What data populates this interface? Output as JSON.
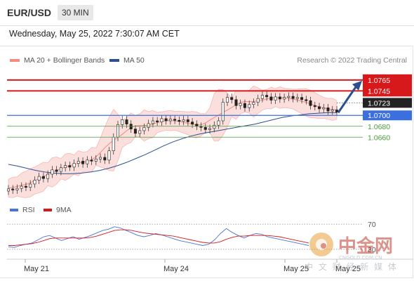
{
  "header": {
    "pair": "EUR/USD",
    "timeframe": "30 MIN"
  },
  "datetime": "Wednesday, May 25, 2022 7:30:07 AM CET",
  "legend": {
    "bb_label": "MA 20 + Bollinger Bands",
    "ma50_label": "MA 50",
    "credit": "Research © 2022 Trading Central"
  },
  "rsi_legend": {
    "rsi_label": "RSI",
    "ma_label": "9MA"
  },
  "colors": {
    "bb": "#f28b82",
    "ma50": "#2c4f8f",
    "resistance": "#d7191c",
    "pivot": "#3b6fe0",
    "support": "#4a9a3c",
    "rsi": "#4a74d9",
    "rsi_ma": "#d7191c"
  },
  "watermark": {
    "logo_text": "中金网",
    "url_text": "CNGOLD.COM.CN",
    "tagline": "中 文 财 经 新 媒 体"
  },
  "chart_data": [
    {
      "type": "candlestick",
      "title": "EUR/USD 30 MIN",
      "ylim": [
        1.0543,
        1.0788
      ],
      "x_axis_ticks": [
        "May 21",
        "May 24",
        "May 25",
        "May 25"
      ],
      "levels": [
        {
          "value": 1.0765,
          "label": "1.0765",
          "kind": "resistance"
        },
        {
          "value": 1.0745,
          "label": "1.0745",
          "kind": "resistance"
        },
        {
          "value": 1.0723,
          "label": "1.0723",
          "kind": "last-price"
        },
        {
          "value": 1.07,
          "label": "1.0700",
          "kind": "pivot"
        },
        {
          "value": 1.068,
          "label": "1.0680",
          "kind": "support"
        },
        {
          "value": 1.066,
          "label": "1.0660",
          "kind": "support"
        }
      ],
      "close_series": [
        1.0565,
        1.0563,
        1.0566,
        1.057,
        1.0568,
        1.0574,
        1.0581,
        1.0588,
        1.0584,
        1.0592,
        1.06,
        1.0597,
        1.0604,
        1.0608,
        1.0605,
        1.0612,
        1.0616,
        1.0611,
        1.0618,
        1.0616,
        1.062,
        1.0623,
        1.0618,
        1.0635,
        1.066,
        1.0683,
        1.0692,
        1.0684,
        1.0675,
        1.0667,
        1.0672,
        1.0678,
        1.0685,
        1.069,
        1.0688,
        1.0694,
        1.069,
        1.0693,
        1.0691,
        1.0689,
        1.0692,
        1.0688,
        1.0684,
        1.068,
        1.0678,
        1.0674,
        1.0676,
        1.0682,
        1.069,
        1.0724,
        1.0733,
        1.0729,
        1.0718,
        1.0722,
        1.0714,
        1.072,
        1.0724,
        1.0731,
        1.0737,
        1.0734,
        1.0728,
        1.0734,
        1.073,
        1.0733,
        1.0735,
        1.0731,
        1.0733,
        1.0729,
        1.0727,
        1.0718,
        1.0716,
        1.0712,
        1.0714,
        1.0708,
        1.071,
        1.0706
      ],
      "ma50_series": [
        1.061,
        1.0607,
        1.0603,
        1.0599,
        1.0596,
        1.0594,
        1.0593,
        1.0593,
        1.0594,
        1.0596,
        1.0599,
        1.0603,
        1.0608,
        1.0614,
        1.0621,
        1.0628,
        1.0636,
        1.0644,
        1.0651,
        1.0657,
        1.0662,
        1.0666,
        1.0669,
        1.0672,
        1.0675,
        1.0678,
        1.0681,
        1.0684,
        1.0688,
        1.0692,
        1.0696,
        1.0699,
        1.0701,
        1.0703,
        1.0704,
        1.0705,
        1.0705
      ],
      "arrow": {
        "from": 1.0705,
        "to": 1.0765,
        "direction": "up"
      }
    },
    {
      "type": "line",
      "title": "RSI",
      "ylim": [
        22,
        78
      ],
      "y_ticks": [
        70,
        30
      ],
      "series": [
        {
          "name": "RSI",
          "values": [
            34,
            33,
            36,
            38,
            40,
            45,
            50,
            52,
            48,
            44,
            47,
            50,
            46,
            49,
            52,
            56,
            60,
            62,
            66,
            64,
            60,
            56,
            52,
            50,
            52,
            55,
            53,
            50,
            47,
            44,
            42,
            40,
            38,
            36,
            38,
            45,
            55,
            63,
            57,
            52,
            48,
            52,
            55,
            54,
            50,
            48,
            46,
            44,
            42,
            40,
            38,
            36
          ]
        },
        {
          "name": "9MA",
          "values": [
            36,
            36,
            37,
            38,
            39,
            41,
            44,
            47,
            48,
            48,
            48,
            48,
            48,
            48,
            49,
            51,
            54,
            57,
            60,
            61,
            61,
            60,
            58,
            56,
            55,
            54,
            53,
            52,
            51,
            49,
            47,
            45,
            43,
            41,
            40,
            40,
            42,
            46,
            49,
            51,
            51,
            52,
            52,
            52,
            52,
            51,
            50,
            48,
            46,
            44,
            42,
            40
          ]
        }
      ]
    }
  ]
}
